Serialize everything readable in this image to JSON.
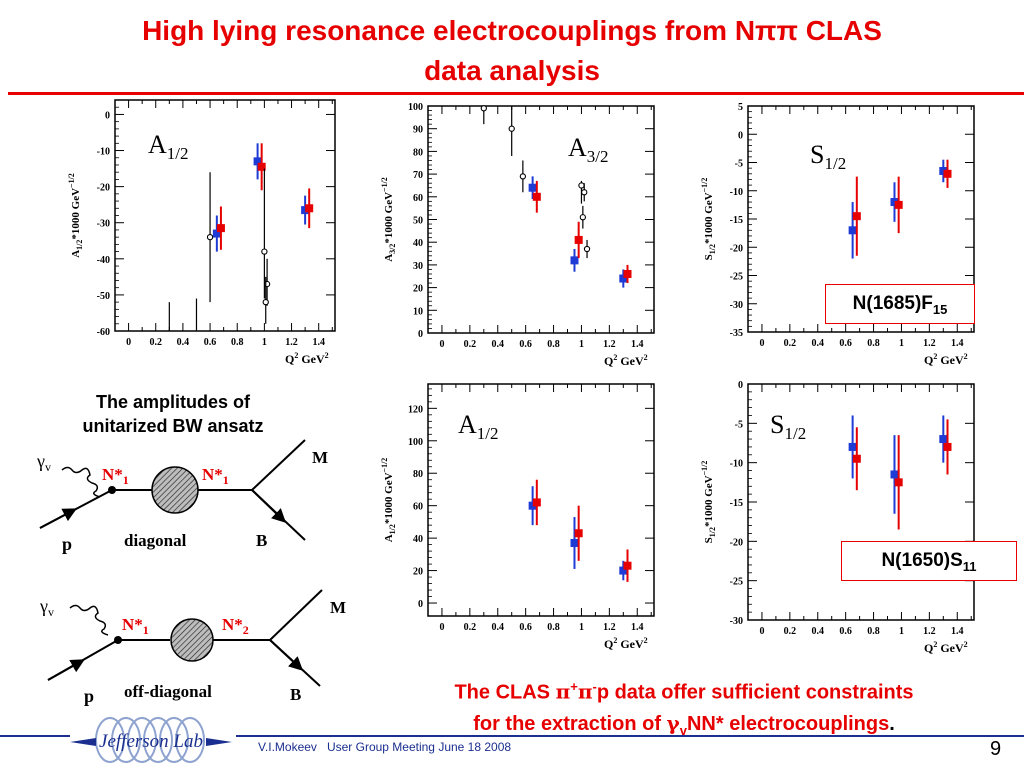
{
  "slide": {
    "title_line1": "High lying resonance electrocouplings from Nππ CLAS",
    "title_line2": "data analysis",
    "page_number": "9",
    "footer_author": "V.I.Mokeev",
    "footer_event": "User Group Meeting June 18 2008",
    "logo_text": "Jefferson Lab"
  },
  "state_boxes": [
    {
      "main": "N(1685)F",
      "sub": "15"
    },
    {
      "main": "N(1650)S",
      "sub": "11"
    }
  ],
  "diagram": {
    "caption_line1": "The amplitudes of",
    "caption_line2": "unitarized BW ansatz",
    "photon": "γ",
    "photon_sub": "v",
    "meson": "M",
    "baryon": "B",
    "proton": "p",
    "nstar": "N*",
    "nstar_sub1": "1",
    "nstar_sub2": "2",
    "label_diagonal": "diagonal",
    "label_offdiagonal": "off-diagonal"
  },
  "conclusion": {
    "line1_a": "The CLAS ",
    "line1_pi": "π",
    "line1_plus": "+",
    "line1_minus": "-",
    "line1_b": "p data offer sufficient constraints",
    "line2_a": "for the extraction of ",
    "line2_gamma": "γ",
    "line2_sub": "v",
    "line2_b": "NN* electrocouplings",
    "line2_end": "."
  },
  "chart_data": [
    {
      "type": "scatter",
      "label_main": "A",
      "label_sub": "1/2",
      "ylabel_main": "A",
      "ylabel_sub": "1/2",
      "ylabel_rest": "*1000 GeV",
      "ylabel_sup": "−1/2",
      "xlabel": "Q",
      "xlabel_sup": "2",
      "xlabel_unit": "GeV",
      "xlabel_unit_sup": "2",
      "xlim": [
        -0.1,
        1.52
      ],
      "ylim": [
        -60,
        4
      ],
      "xticks": [
        "0",
        "0.2",
        "0.4",
        "0.6",
        "0.8",
        "1",
        "1.2",
        "1.4"
      ],
      "yticks": [
        "0",
        "-10",
        "-20",
        "-30",
        "-40",
        "-50",
        "-60"
      ],
      "series": [
        {
          "color": "#1f3bd6",
          "marker": "square",
          "points": [
            {
              "x": 0.65,
              "y": -33,
              "err": 5
            },
            {
              "x": 0.95,
              "y": -13,
              "err": 5
            },
            {
              "x": 1.3,
              "y": -26.5,
              "err": 4
            }
          ]
        },
        {
          "color": "#e60000",
          "marker": "square",
          "points": [
            {
              "x": 0.68,
              "y": -31.5,
              "err": 6
            },
            {
              "x": 0.98,
              "y": -14.5,
              "err": 6.5
            },
            {
              "x": 1.33,
              "y": -26,
              "err": 5.5
            }
          ]
        },
        {
          "color": "#000000",
          "marker": "circle",
          "points": [
            {
              "x": 0.6,
              "y": -34,
              "lo": -52,
              "hi": -16
            },
            {
              "x": 1.0,
              "y": -38,
              "lo": -51,
              "hi": -15
            },
            {
              "x": 1.02,
              "y": -47,
              "lo": -53,
              "hi": -40
            },
            {
              "x": 1.01,
              "y": -52,
              "lo": -58,
              "hi": -45
            }
          ]
        },
        {
          "color": "#000000",
          "marker": "none",
          "points": [
            {
              "x": 0.3,
              "y": -60,
              "lo": -60,
              "hi": -52
            },
            {
              "x": 0.5,
              "y": -60,
              "lo": -60,
              "hi": -51
            }
          ]
        }
      ]
    },
    {
      "type": "scatter",
      "label_main": "A",
      "label_sub": "3/2",
      "ylabel_main": "A",
      "ylabel_sub": "3/2",
      "ylabel_rest": "*1000 GeV",
      "ylabel_sup": "−1/2",
      "xlabel": "Q",
      "xlabel_sup": "2",
      "xlabel_unit": "GeV",
      "xlabel_unit_sup": "2",
      "xlim": [
        -0.1,
        1.52
      ],
      "ylim": [
        0,
        100
      ],
      "xticks": [
        "0",
        "0.2",
        "0.4",
        "0.6",
        "0.8",
        "1",
        "1.2",
        "1.4"
      ],
      "yticks": [
        "0",
        "10",
        "20",
        "30",
        "40",
        "50",
        "60",
        "70",
        "80",
        "90",
        "100"
      ],
      "series": [
        {
          "color": "#1f3bd6",
          "marker": "square",
          "points": [
            {
              "x": 0.65,
              "y": 64,
              "err": 5
            },
            {
              "x": 0.95,
              "y": 32,
              "err": 5
            },
            {
              "x": 1.3,
              "y": 24,
              "err": 4
            }
          ]
        },
        {
          "color": "#e60000",
          "marker": "square",
          "points": [
            {
              "x": 0.68,
              "y": 60,
              "err": 7
            },
            {
              "x": 0.98,
              "y": 41,
              "err": 8
            },
            {
              "x": 1.33,
              "y": 26,
              "err": 4
            }
          ]
        },
        {
          "color": "#000000",
          "marker": "circle",
          "points": [
            {
              "x": 0.3,
              "y": 99,
              "lo": 92,
              "hi": 100
            },
            {
              "x": 0.5,
              "y": 90,
              "lo": 78,
              "hi": 100
            },
            {
              "x": 0.58,
              "y": 69,
              "lo": 62,
              "hi": 76
            },
            {
              "x": 1.0,
              "y": 65,
              "lo": 57,
              "hi": 67
            },
            {
              "x": 1.02,
              "y": 62,
              "lo": 58,
              "hi": 66
            },
            {
              "x": 1.01,
              "y": 51,
              "lo": 46,
              "hi": 56
            },
            {
              "x": 1.04,
              "y": 37,
              "lo": 33,
              "hi": 41
            }
          ]
        }
      ]
    },
    {
      "type": "scatter",
      "label_main": "S",
      "label_sub": "1/2",
      "ylabel_main": "S",
      "ylabel_sub": "1/2",
      "ylabel_rest": "*1000 GeV",
      "ylabel_sup": "−1/2",
      "xlabel": "Q",
      "xlabel_sup": "2",
      "xlabel_unit": "GeV",
      "xlabel_unit_sup": "2",
      "xlim": [
        -0.1,
        1.52
      ],
      "ylim": [
        -35,
        5
      ],
      "xticks": [
        "0",
        "0.2",
        "0.4",
        "0.6",
        "0.8",
        "1",
        "1.2",
        "1.4"
      ],
      "yticks": [
        "5",
        "0",
        "-5",
        "-10",
        "-15",
        "-20",
        "-25",
        "-30",
        "-35"
      ],
      "series": [
        {
          "color": "#1f3bd6",
          "marker": "square",
          "points": [
            {
              "x": 0.65,
              "y": -17,
              "err": 5
            },
            {
              "x": 0.95,
              "y": -12,
              "err": 3.5
            },
            {
              "x": 1.3,
              "y": -6.5,
              "err": 2
            }
          ]
        },
        {
          "color": "#e60000",
          "marker": "square",
          "points": [
            {
              "x": 0.68,
              "y": -14.5,
              "err": 7
            },
            {
              "x": 0.98,
              "y": -12.5,
              "err": 5
            },
            {
              "x": 1.33,
              "y": -7,
              "err": 2.5
            }
          ]
        }
      ]
    },
    {
      "type": "scatter",
      "label_main": "A",
      "label_sub": "1/2",
      "ylabel_main": "A",
      "ylabel_sub": "1/2",
      "ylabel_rest": "*1000 GeV",
      "ylabel_sup": "−1/2",
      "xlabel": "Q",
      "xlabel_sup": "2",
      "xlabel_unit": "GeV",
      "xlabel_unit_sup": "2",
      "xlim": [
        -0.1,
        1.52
      ],
      "ylim": [
        -8,
        135
      ],
      "xticks": [
        "0",
        "0.2",
        "0.4",
        "0.6",
        "0.8",
        "1",
        "1.2",
        "1.4"
      ],
      "yticks": [
        "0",
        "20",
        "40",
        "60",
        "80",
        "100",
        "120"
      ],
      "series": [
        {
          "color": "#1f3bd6",
          "marker": "square",
          "points": [
            {
              "x": 0.65,
              "y": 60,
              "err": 12
            },
            {
              "x": 0.95,
              "y": 37,
              "err": 16
            },
            {
              "x": 1.3,
              "y": 20,
              "err": 6
            }
          ]
        },
        {
          "color": "#e60000",
          "marker": "square",
          "points": [
            {
              "x": 0.68,
              "y": 62,
              "err": 14
            },
            {
              "x": 0.98,
              "y": 43,
              "err": 17
            },
            {
              "x": 1.33,
              "y": 23,
              "err": 10
            }
          ]
        }
      ]
    },
    {
      "type": "scatter",
      "label_main": "S",
      "label_sub": "1/2",
      "ylabel_main": "S",
      "ylabel_sub": "1/2",
      "ylabel_rest": "*1000 GeV",
      "ylabel_sup": "−1/2",
      "xlabel": "Q",
      "xlabel_sup": "2",
      "xlabel_unit": "GeV",
      "xlabel_unit_sup": "2",
      "xlim": [
        -0.1,
        1.52
      ],
      "ylim": [
        -30,
        0
      ],
      "xticks": [
        "0",
        "0.2",
        "0.4",
        "0.6",
        "0.8",
        "1",
        "1.2",
        "1.4"
      ],
      "yticks": [
        "0",
        "-5",
        "-10",
        "-15",
        "-20",
        "-25",
        "-30"
      ],
      "series": [
        {
          "color": "#1f3bd6",
          "marker": "square",
          "points": [
            {
              "x": 0.65,
              "y": -8,
              "err": 4
            },
            {
              "x": 0.95,
              "y": -11.5,
              "err": 5
            },
            {
              "x": 1.3,
              "y": -7,
              "err": 3
            }
          ]
        },
        {
          "color": "#e60000",
          "marker": "square",
          "points": [
            {
              "x": 0.68,
              "y": -9.5,
              "err": 4
            },
            {
              "x": 0.98,
              "y": -12.5,
              "err": 6
            },
            {
              "x": 1.33,
              "y": -8,
              "err": 3.5
            }
          ]
        }
      ]
    }
  ]
}
